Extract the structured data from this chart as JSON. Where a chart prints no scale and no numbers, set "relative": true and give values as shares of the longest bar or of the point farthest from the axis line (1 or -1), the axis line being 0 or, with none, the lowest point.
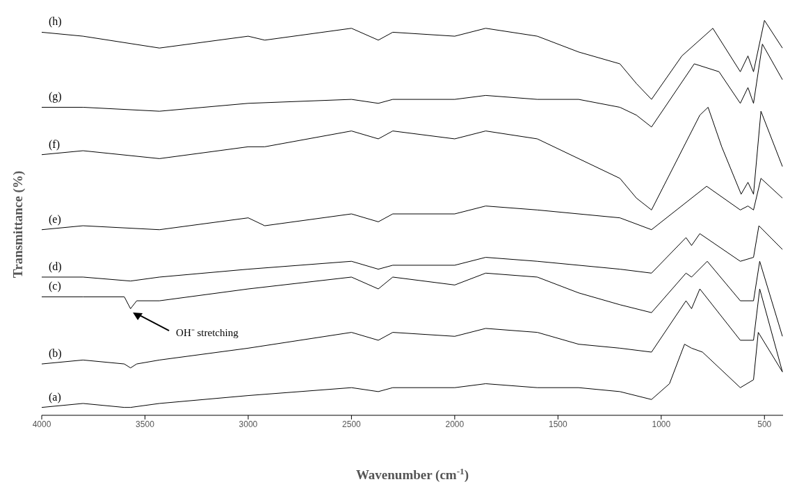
{
  "chart_data": {
    "type": "line",
    "relative": true,
    "xlabel": "Wavenumber (cm$^{-1}$)",
    "ylabel": "Transmittance (%)",
    "xlim": [
      4000,
      410
    ],
    "xticks": [
      4000,
      3500,
      3000,
      2500,
      2000,
      1500,
      1000,
      500
    ],
    "marker": "none",
    "line_style": "solid",
    "series": [
      {
        "color": "#000000",
        "x": [
          4000,
          3800,
          3600,
          3570,
          3430,
          3000,
          2500,
          2370,
          2300,
          2000,
          1850,
          1600,
          1400,
          1200,
          1047,
          960,
          887,
          853,
          800,
          617,
          553,
          530,
          413
        ],
        "values": [
          0.02,
          0.03,
          0.02,
          0.02,
          0.03,
          0.05,
          0.07,
          0.06,
          0.07,
          0.07,
          0.08,
          0.07,
          0.07,
          0.06,
          0.04,
          0.08,
          0.18,
          0.17,
          0.16,
          0.07,
          0.09,
          0.21,
          0.11
        ]
      },
      {
        "color": "#000000",
        "x": [
          4000,
          3800,
          3600,
          3570,
          3540,
          3430,
          3000,
          2500,
          2370,
          2300,
          2000,
          1850,
          1600,
          1400,
          1200,
          1047,
          880,
          853,
          813,
          617,
          553,
          523,
          413
        ],
        "values": [
          0.13,
          0.14,
          0.13,
          0.12,
          0.13,
          0.14,
          0.17,
          0.21,
          0.19,
          0.21,
          0.2,
          0.22,
          0.21,
          0.18,
          0.17,
          0.16,
          0.29,
          0.27,
          0.32,
          0.19,
          0.19,
          0.32,
          0.11
        ]
      },
      {
        "color": "#000000",
        "x": [
          4000,
          3800,
          3600,
          3570,
          3540,
          3430,
          3000,
          2500,
          2370,
          2300,
          2000,
          1850,
          1600,
          1400,
          1200,
          1047,
          880,
          853,
          777,
          617,
          553,
          523,
          413
        ],
        "values": [
          0.3,
          0.3,
          0.3,
          0.27,
          0.29,
          0.29,
          0.32,
          0.35,
          0.32,
          0.35,
          0.33,
          0.36,
          0.35,
          0.31,
          0.28,
          0.26,
          0.36,
          0.35,
          0.39,
          0.29,
          0.29,
          0.39,
          0.2
        ]
      },
      {
        "color": "#000000",
        "x": [
          4000,
          3800,
          3570,
          3430,
          3000,
          2500,
          2370,
          2300,
          2000,
          1850,
          1600,
          1400,
          1200,
          1047,
          880,
          853,
          813,
          617,
          553,
          527,
          413
        ],
        "values": [
          0.35,
          0.35,
          0.34,
          0.35,
          0.37,
          0.39,
          0.37,
          0.38,
          0.38,
          0.4,
          0.39,
          0.38,
          0.37,
          0.36,
          0.45,
          0.43,
          0.46,
          0.39,
          0.4,
          0.48,
          0.42
        ]
      },
      {
        "color": "#000000",
        "x": [
          4000,
          3800,
          3430,
          3000,
          2920,
          2500,
          2370,
          2300,
          2000,
          1850,
          1600,
          1400,
          1200,
          1047,
          780,
          617,
          580,
          553,
          517,
          413
        ],
        "values": [
          0.47,
          0.48,
          0.47,
          0.5,
          0.48,
          0.51,
          0.49,
          0.51,
          0.51,
          0.53,
          0.52,
          0.51,
          0.5,
          0.47,
          0.58,
          0.52,
          0.53,
          0.52,
          0.6,
          0.55
        ]
      },
      {
        "color": "#000000",
        "x": [
          4000,
          3800,
          3430,
          3000,
          2920,
          2500,
          2370,
          2300,
          2000,
          1850,
          1600,
          1400,
          1200,
          1120,
          1047,
          813,
          773,
          707,
          613,
          580,
          553,
          517,
          413
        ],
        "values": [
          0.66,
          0.67,
          0.65,
          0.68,
          0.68,
          0.72,
          0.7,
          0.72,
          0.7,
          0.72,
          0.7,
          0.65,
          0.6,
          0.55,
          0.52,
          0.76,
          0.78,
          0.68,
          0.56,
          0.59,
          0.56,
          0.77,
          0.63
        ]
      },
      {
        "color": "#000000",
        "x": [
          4000,
          3800,
          3430,
          3000,
          2500,
          2370,
          2300,
          2000,
          1850,
          1600,
          1400,
          1200,
          1120,
          1047,
          840,
          720,
          617,
          580,
          553,
          510,
          413
        ],
        "values": [
          0.78,
          0.78,
          0.77,
          0.79,
          0.8,
          0.79,
          0.8,
          0.8,
          0.81,
          0.8,
          0.8,
          0.78,
          0.76,
          0.73,
          0.89,
          0.87,
          0.79,
          0.83,
          0.79,
          0.94,
          0.85
        ]
      },
      {
        "color": "#000000",
        "x": [
          4000,
          3800,
          3430,
          3000,
          2920,
          2500,
          2370,
          2300,
          2000,
          1850,
          1600,
          1400,
          1200,
          1120,
          1047,
          900,
          750,
          617,
          580,
          553,
          500,
          413
        ],
        "values": [
          0.97,
          0.96,
          0.93,
          0.96,
          0.95,
          0.98,
          0.95,
          0.97,
          0.96,
          0.98,
          0.96,
          0.92,
          0.89,
          0.84,
          0.8,
          0.91,
          0.98,
          0.87,
          0.91,
          0.87,
          1.0,
          0.93
        ]
      }
    ],
    "annotations": [
      "(a)",
      "(b)",
      "(c)",
      "(d)",
      "(e)",
      "(f)",
      "(g)",
      "(h)",
      "OH⁻ stretching"
    ]
  }
}
